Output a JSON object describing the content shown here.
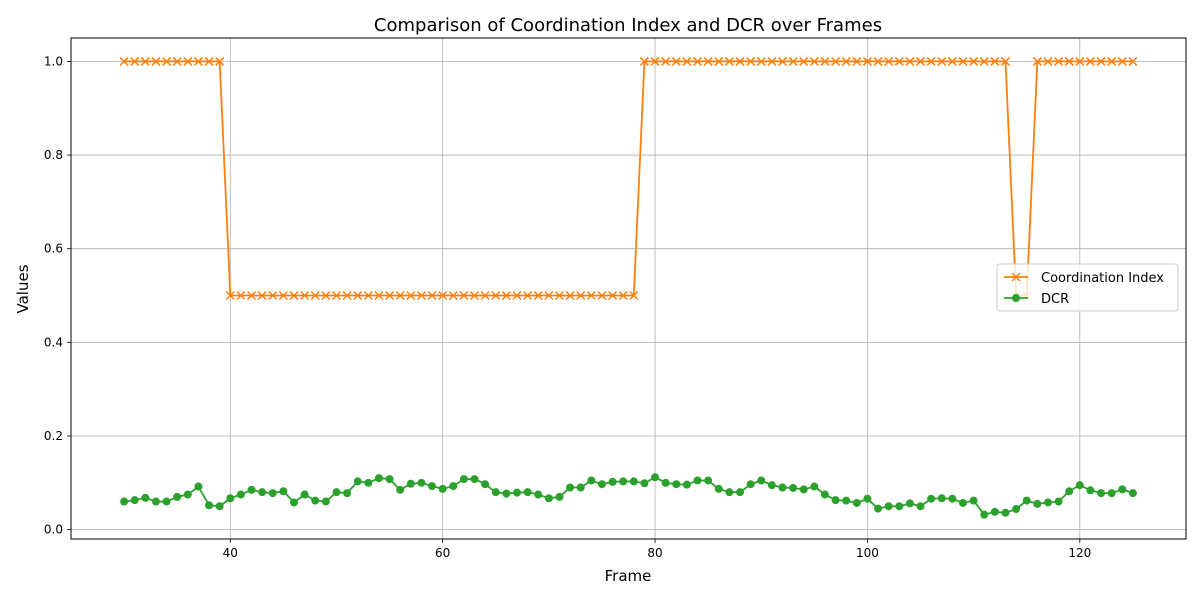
{
  "chart_data": {
    "type": "line",
    "title": "Comparison of Coordination Index and DCR over Frames",
    "xlabel": "Frame",
    "ylabel": "Values",
    "xlim": [
      25,
      130
    ],
    "ylim": [
      -0.02,
      1.05
    ],
    "xticks": [
      40,
      60,
      80,
      100,
      120
    ],
    "yticks": [
      0.0,
      0.2,
      0.4,
      0.6,
      0.8,
      1.0
    ],
    "grid": true,
    "legend_position": "center-right",
    "x": [
      30,
      31,
      32,
      33,
      34,
      35,
      36,
      37,
      38,
      39,
      40,
      41,
      42,
      43,
      44,
      45,
      46,
      47,
      48,
      49,
      50,
      51,
      52,
      53,
      54,
      55,
      56,
      57,
      58,
      59,
      60,
      61,
      62,
      63,
      64,
      65,
      66,
      67,
      68,
      69,
      70,
      71,
      72,
      73,
      74,
      75,
      76,
      77,
      78,
      79,
      80,
      81,
      82,
      83,
      84,
      85,
      86,
      87,
      88,
      89,
      90,
      91,
      92,
      93,
      94,
      95,
      96,
      97,
      98,
      99,
      100,
      101,
      102,
      103,
      104,
      105,
      106,
      107,
      108,
      109,
      110,
      111,
      112,
      113,
      114,
      115,
      116,
      117,
      118,
      119,
      120,
      121,
      122,
      123,
      124,
      125
    ],
    "series": [
      {
        "name": "Coordination Index",
        "color": "#ff7f0e",
        "marker": "x",
        "values": [
          1,
          1,
          1,
          1,
          1,
          1,
          1,
          1,
          1,
          1,
          0.5,
          0.5,
          0.5,
          0.5,
          0.5,
          0.5,
          0.5,
          0.5,
          0.5,
          0.5,
          0.5,
          0.5,
          0.5,
          0.5,
          0.5,
          0.5,
          0.5,
          0.5,
          0.5,
          0.5,
          0.5,
          0.5,
          0.5,
          0.5,
          0.5,
          0.5,
          0.5,
          0.5,
          0.5,
          0.5,
          0.5,
          0.5,
          0.5,
          0.5,
          0.5,
          0.5,
          0.5,
          0.5,
          0.5,
          1,
          1,
          1,
          1,
          1,
          1,
          1,
          1,
          1,
          1,
          1,
          1,
          1,
          1,
          1,
          1,
          1,
          1,
          1,
          1,
          1,
          1,
          1,
          1,
          1,
          1,
          1,
          1,
          1,
          1,
          1,
          1,
          1,
          1,
          1,
          0.5,
          0.5,
          1,
          1,
          1,
          1,
          1,
          1,
          1,
          1,
          1,
          1
        ]
      },
      {
        "name": "DCR",
        "color": "#2ca02c",
        "marker": "o",
        "values": [
          0.06,
          0.063,
          0.068,
          0.06,
          0.06,
          0.07,
          0.075,
          0.092,
          0.052,
          0.05,
          0.067,
          0.075,
          0.085,
          0.08,
          0.078,
          0.082,
          0.058,
          0.075,
          0.062,
          0.06,
          0.08,
          0.078,
          0.103,
          0.1,
          0.11,
          0.108,
          0.085,
          0.098,
          0.1,
          0.093,
          0.087,
          0.093,
          0.108,
          0.108,
          0.097,
          0.08,
          0.077,
          0.079,
          0.08,
          0.075,
          0.067,
          0.07,
          0.09,
          0.09,
          0.105,
          0.097,
          0.102,
          0.103,
          0.103,
          0.099,
          0.112,
          0.1,
          0.097,
          0.096,
          0.105,
          0.105,
          0.087,
          0.08,
          0.08,
          0.097,
          0.105,
          0.095,
          0.09,
          0.089,
          0.086,
          0.092,
          0.075,
          0.063,
          0.062,
          0.057,
          0.066,
          0.045,
          0.05,
          0.05,
          0.056,
          0.05,
          0.066,
          0.067,
          0.066,
          0.057,
          0.062,
          0.032,
          0.038,
          0.036,
          0.044,
          0.062,
          0.055,
          0.058,
          0.06,
          0.082,
          0.095,
          0.084,
          0.078,
          0.078,
          0.086,
          0.078
        ]
      }
    ]
  }
}
